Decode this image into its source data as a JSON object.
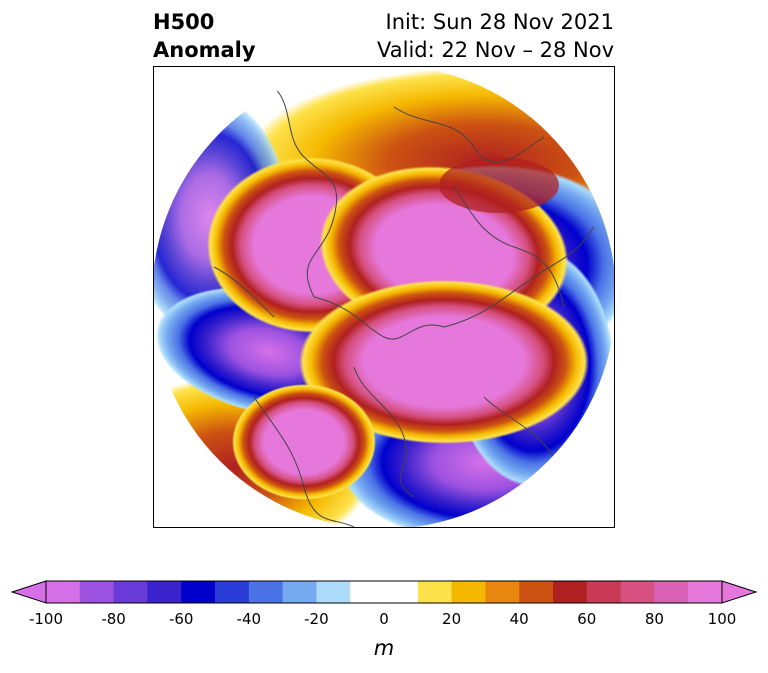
{
  "title": {
    "left_line1": "H500",
    "left_line2": "Anomaly",
    "right_line1": "Init: Sun 28 Nov 2021",
    "right_line2": "Valid: 22 Nov – 28 Nov"
  },
  "map": {
    "projection": "north-polar-stereographic",
    "variable": "500 hPa geopotential height anomaly",
    "features": [
      {
        "kind": "positive-anomaly",
        "region": "Alaska / Bering Sea",
        "peak_m": 100
      },
      {
        "kind": "positive-anomaly",
        "region": "Greenland / Arctic",
        "peak_m": 100
      },
      {
        "kind": "positive-anomaly",
        "region": "Western Russia / Scandinavia",
        "peak_m": 100
      },
      {
        "kind": "positive-anomaly",
        "region": "Central North America",
        "peak_m": 100
      },
      {
        "kind": "positive-anomaly",
        "region": "Eastern Siberia",
        "peak_m": 60
      },
      {
        "kind": "negative-anomaly",
        "region": "North Pacific",
        "peak_m": -100
      },
      {
        "kind": "negative-anomaly",
        "region": "North Atlantic / Europe",
        "peak_m": -90
      },
      {
        "kind": "negative-anomaly",
        "region": "Western Atlantic",
        "peak_m": -80
      }
    ]
  },
  "colorbar": {
    "unit": "m",
    "ticks": [
      "-100",
      "-80",
      "-60",
      "-40",
      "-20",
      "0",
      "20",
      "40",
      "60",
      "80",
      "100"
    ],
    "colors": [
      "#d670e8",
      "#9c52e0",
      "#6a3ad8",
      "#3a22cc",
      "#0000cc",
      "#2a3cd8",
      "#4a72e6",
      "#76aaf0",
      "#acdcfa",
      "#ffffff",
      "#ffffff",
      "#fde24a",
      "#f5b800",
      "#e8860f",
      "#cc5212",
      "#b02020",
      "#c83a56",
      "#d65080",
      "#da62b6",
      "#e678dc"
    ]
  }
}
